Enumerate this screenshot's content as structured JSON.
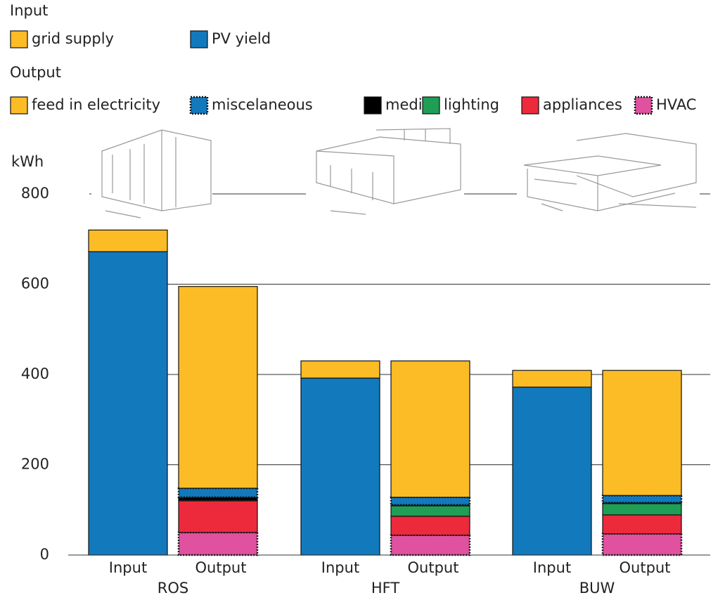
{
  "chart_data": {
    "type": "stacked_bar",
    "y_label": "kWh",
    "ylim": [
      0,
      800
    ],
    "yticks": [
      0,
      200,
      400,
      600,
      800
    ],
    "grid": true,
    "groups": [
      "ROS",
      "HFT",
      "BUW"
    ],
    "stacks": [
      {
        "name": "Input",
        "series": [
          {
            "name": "PV yield",
            "color": "#1379bd",
            "values": [
              672,
              392,
              372
            ]
          },
          {
            "name": "grid supply",
            "color": "#fbbc26",
            "values": [
              48,
              38,
              37
            ]
          }
        ]
      },
      {
        "name": "Output",
        "series": [
          {
            "name": "HVAC",
            "color": "#e0519f",
            "dotted": true,
            "values": [
              50,
              44,
              47
            ]
          },
          {
            "name": "appliances",
            "color": "#ec2a3b",
            "values": [
              70,
              42,
              42
            ]
          },
          {
            "name": "lighting",
            "color": "#1f9e55",
            "values": [
              2,
              23,
              25
            ]
          },
          {
            "name": "media",
            "color": "#000000",
            "values": [
              6,
              2,
              2
            ]
          },
          {
            "name": "miscelaneous",
            "color": "#1379bd",
            "dotted": true,
            "values": [
              20,
              17,
              16
            ]
          },
          {
            "name": "feed in electricity",
            "color": "#fbbc26",
            "values": [
              447,
              302,
              277
            ]
          }
        ]
      }
    ]
  }
}
